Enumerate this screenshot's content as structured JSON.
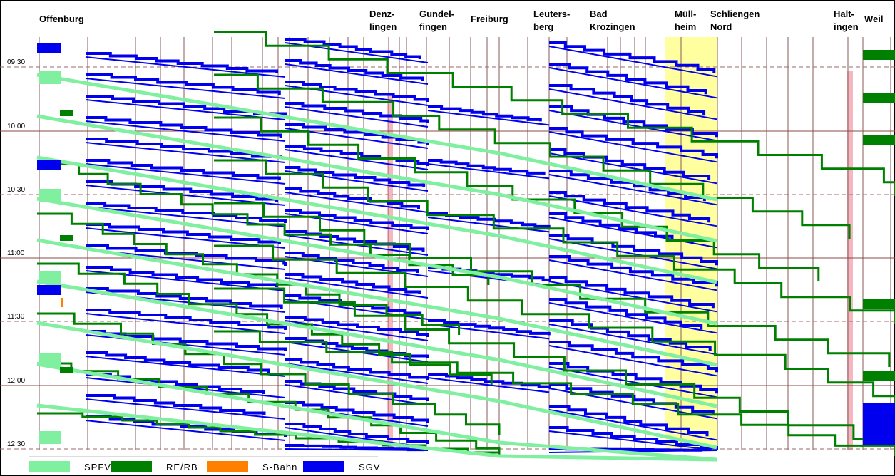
{
  "chart_data": {
    "type": "line",
    "title": "",
    "xlabel": "",
    "ylabel": "",
    "stations": [
      {
        "name": "Offenburg",
        "lines": [
          "Offenburg"
        ]
      },
      {
        "name": "Denzlingen",
        "lines": [
          "Denz-",
          "lingen"
        ]
      },
      {
        "name": "Gundelfingen",
        "lines": [
          "Gundel-",
          "fingen"
        ]
      },
      {
        "name": "Freiburg",
        "lines": [
          "Freiburg"
        ]
      },
      {
        "name": "Leutersberg",
        "lines": [
          "Leuters-",
          "berg"
        ]
      },
      {
        "name": "Bad Krozingen",
        "lines": [
          "Bad",
          "Krozingen"
        ]
      },
      {
        "name": "Müllheim",
        "lines": [
          "Müll-",
          "heim"
        ]
      },
      {
        "name": "Schliengen Nord",
        "lines": [
          "Schliengen",
          "Nord"
        ]
      },
      {
        "name": "Haltingen",
        "lines": [
          "Halt-",
          "ingen"
        ]
      },
      {
        "name": "Weil",
        "lines": [
          "Weil"
        ]
      }
    ],
    "y_ticks": [
      "09:30",
      "10:00",
      "10:30",
      "11:00",
      "11:30",
      "12:00",
      "12:30"
    ],
    "ylim": [
      "09:15",
      "12:32"
    ],
    "grid": true,
    "legend_position": "bottom-left",
    "series": [
      {
        "name": "SPFV",
        "color": "#80f0a0"
      },
      {
        "name": "RE/RB",
        "color": "#008000"
      },
      {
        "name": "S-Bahn",
        "color": "#ff8000"
      },
      {
        "name": "SGV",
        "color": "#0000ee"
      }
    ]
  },
  "colors": {
    "grid_vertical": "#8b5a5a",
    "grid_hour": "#8b4a4a",
    "grid_half": "#9b6a6a",
    "highlight_muellheim": "#ffffa0",
    "highlight_pink": "#f5b8c0"
  }
}
